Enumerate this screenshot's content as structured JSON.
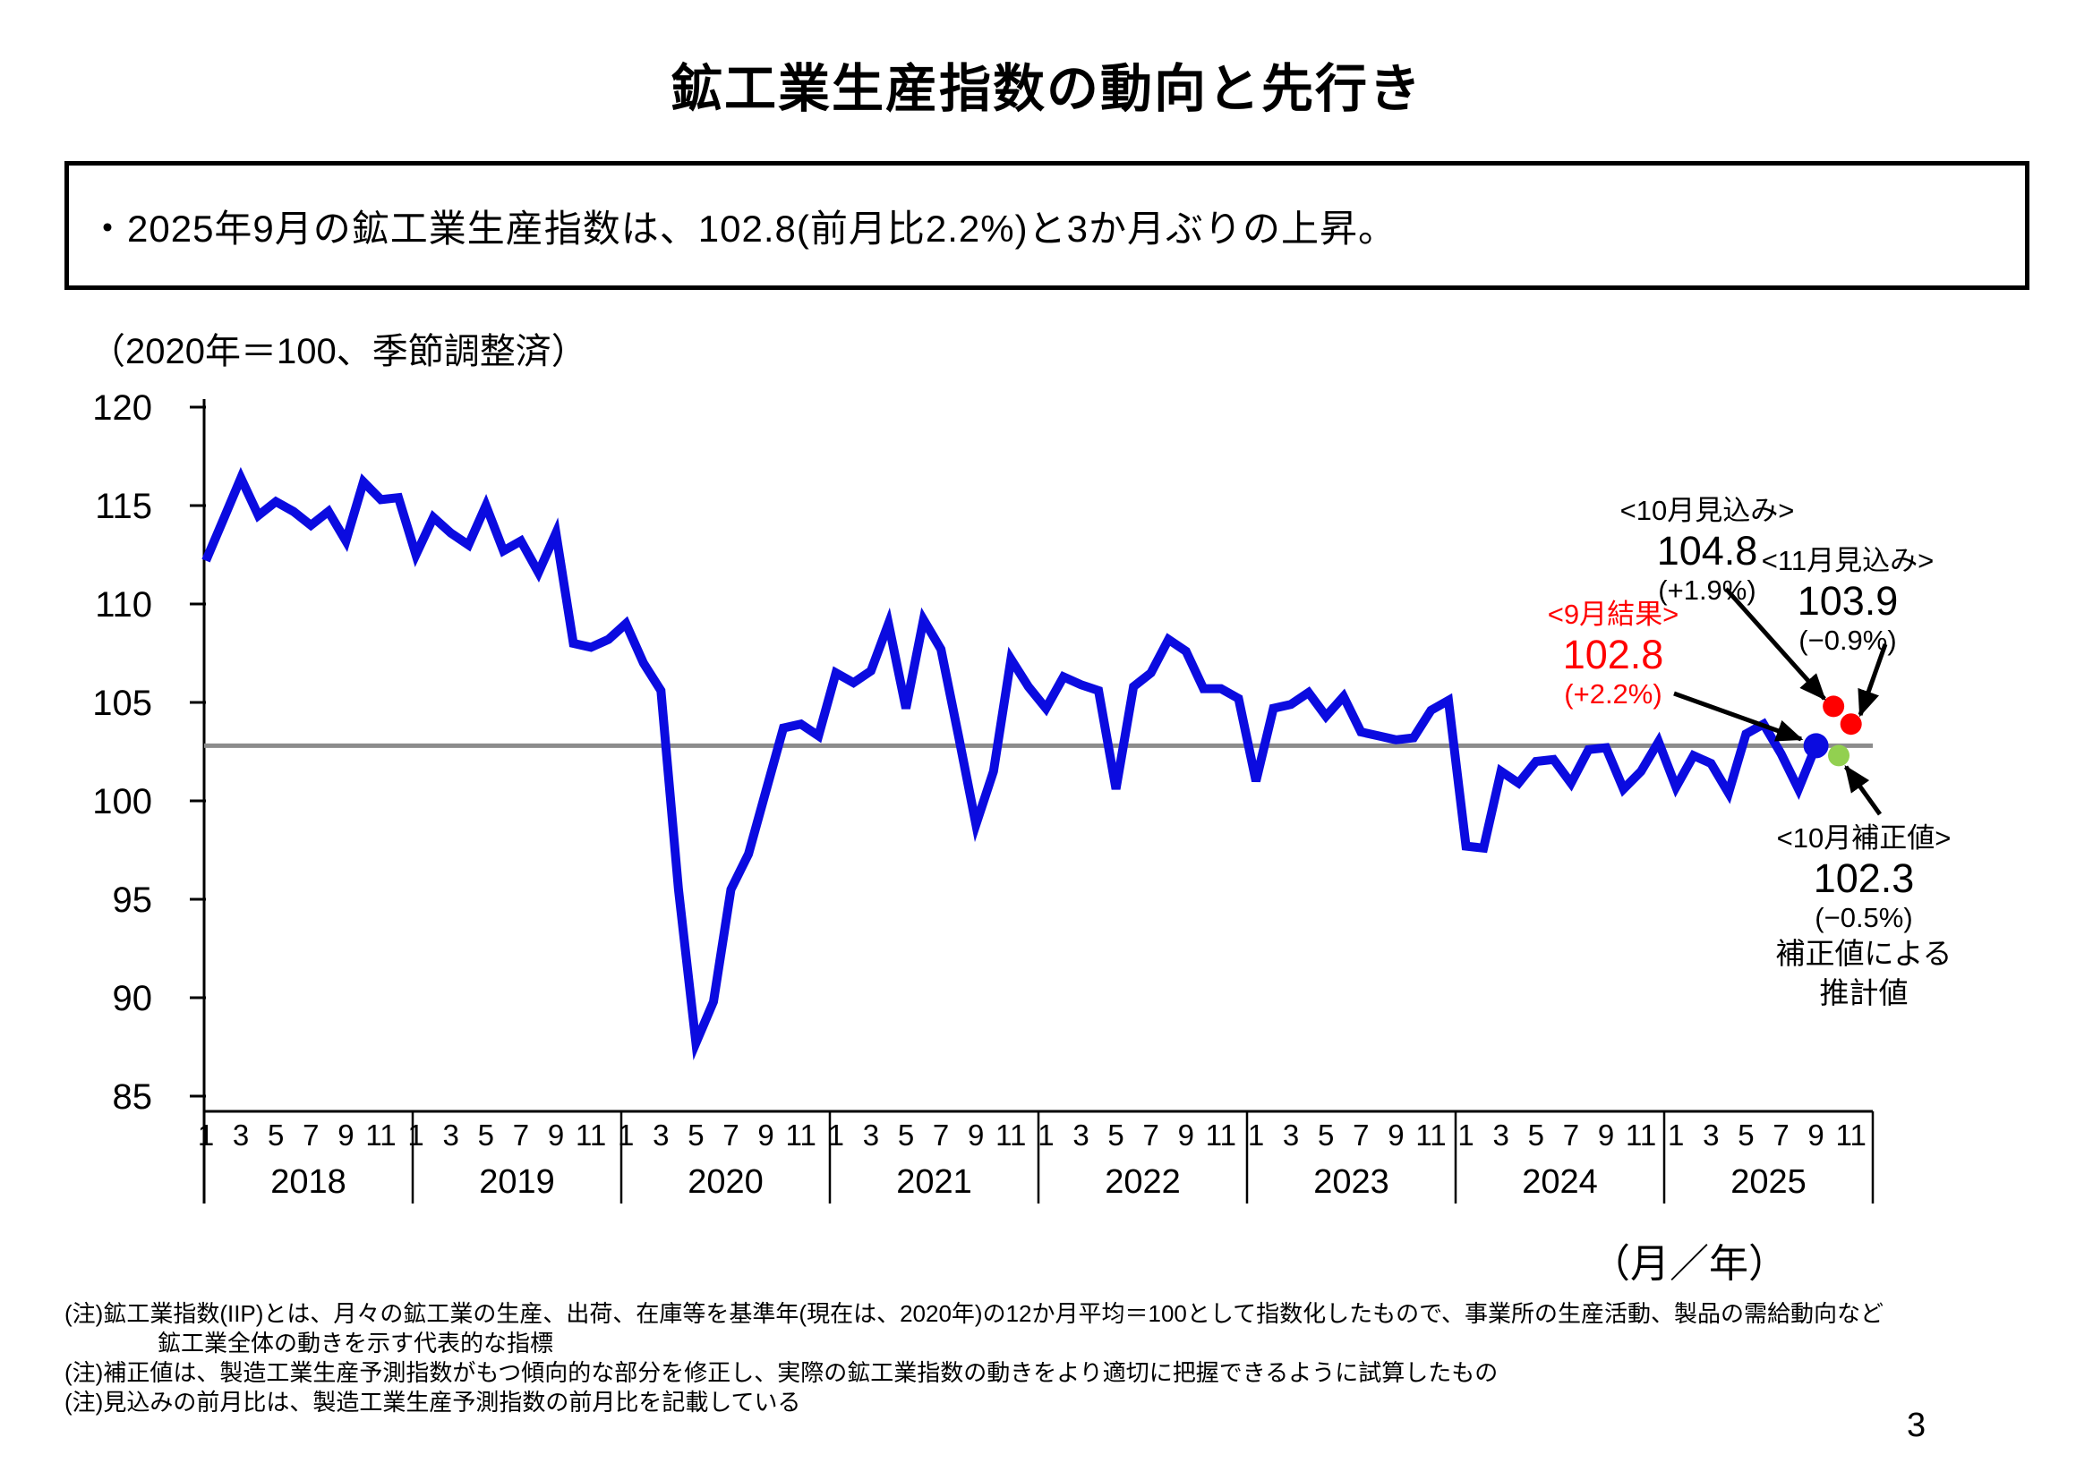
{
  "page": {
    "title": "鉱工業生産指数の動向と先行き",
    "page_number": "3"
  },
  "summary": {
    "text": "・2025年9月の鉱工業生産指数は、102.8(前月比2.2%)と3か月ぶりの上昇。"
  },
  "chart_data": {
    "type": "line",
    "title": "鉱工業生産指数の動向と先行き",
    "unit_label": "（2020年＝100、季節調整済）",
    "xlabel": "（月／年）",
    "ylabel": "",
    "ylim": [
      85,
      120
    ],
    "y_ticks": [
      120,
      115,
      110,
      105,
      100,
      95,
      90,
      85
    ],
    "reference_line_value": 102.8,
    "grid": "off",
    "legend": "none",
    "start_month": "2018-01",
    "end_month": "2025-09",
    "years": [
      "2018",
      "2019",
      "2020",
      "2021",
      "2022",
      "2023",
      "2024",
      "2025"
    ],
    "month_tick_labels": [
      "1",
      "3",
      "5",
      "7",
      "9",
      "11"
    ],
    "series": {
      "name": "鉱工業生産指数",
      "color": "#0b0be0"
    },
    "values": {
      "2018": [
        112.2,
        114.3,
        116.4,
        114.5,
        115.2,
        114.7,
        114.0,
        114.7,
        113.2,
        116.2,
        115.3,
        115.4
      ],
      "2019": [
        112.5,
        114.4,
        113.6,
        113.0,
        115.0,
        112.7,
        113.2,
        111.6,
        113.6,
        108.0,
        107.8,
        108.2
      ],
      "2020": [
        109.0,
        107.0,
        105.6,
        95.5,
        87.7,
        89.8,
        95.5,
        97.3,
        100.5,
        103.7,
        103.9,
        103.3
      ],
      "2021": [
        106.5,
        106.0,
        106.6,
        109.0,
        104.7,
        109.2,
        107.7,
        103.3,
        98.8,
        101.5,
        107.2,
        105.8
      ],
      "2022": [
        104.7,
        106.3,
        105.9,
        105.6,
        100.6,
        105.8,
        106.5,
        108.2,
        107.6,
        105.7,
        105.7,
        105.2
      ],
      "2023": [
        101.0,
        104.7,
        104.9,
        105.5,
        104.3,
        105.3,
        103.5,
        103.3,
        103.1,
        103.2,
        104.6,
        105.1
      ],
      "2024": [
        97.7,
        97.6,
        101.5,
        100.9,
        102.0,
        102.1,
        100.9,
        102.6,
        102.7,
        100.6,
        101.5,
        103.0
      ],
      "2025": [
        100.7,
        102.3,
        101.9,
        100.4,
        103.4,
        103.9,
        102.4,
        100.6,
        102.8
      ]
    },
    "markers": [
      {
        "name": "2025年9月結果",
        "month_index": 92,
        "value": 102.8,
        "color": "#0b0be0",
        "radius": 14
      },
      {
        "name": "2025年10月見込み",
        "month_index": 93,
        "value": 104.8,
        "color": "#ff0000",
        "radius": 12
      },
      {
        "name": "2025年11月見込み",
        "month_index": 94,
        "value": 103.9,
        "color": "#ff0000",
        "radius": 12
      },
      {
        "name": "2025年10月補正値",
        "month_index": 93.3,
        "value": 102.3,
        "color": "#92d050",
        "radius": 12
      }
    ]
  },
  "annotations": {
    "sep_result": {
      "label": "<9月結果>",
      "value": "102.8",
      "change": "(+2.2%)",
      "color": "#ff0000"
    },
    "oct_forecast": {
      "label": "<10月見込み>",
      "value": "104.8",
      "change": "(+1.9%)"
    },
    "nov_forecast": {
      "label": "<11月見込み>",
      "value": "103.9",
      "change": "(−0.9%)"
    },
    "oct_revised": {
      "label": "<10月補正値>",
      "value": "102.3",
      "change": "(−0.5%)",
      "note1": "補正値による",
      "note2": "推計値"
    }
  },
  "footnotes": [
    {
      "text": "(注)鉱工業指数(IIP)とは、月々の鉱工業の生産、出荷、在庫等を基準年(現在は、2020年)の12か月平均＝100として指数化したもので、事業所の生産活動、製品の需給動向など",
      "indent": false
    },
    {
      "text": "鉱工業全体の動きを示す代表的な指標",
      "indent": true
    },
    {
      "text": "(注)補正値は、製造工業生産予測指数がもつ傾向的な部分を修正し、実際の鉱工業指数の動きをより適切に把握できるように試算したもの",
      "indent": false
    },
    {
      "text": "(注)見込みの前月比は、製造工業生産予測指数の前月比を記載している",
      "indent": false
    }
  ]
}
